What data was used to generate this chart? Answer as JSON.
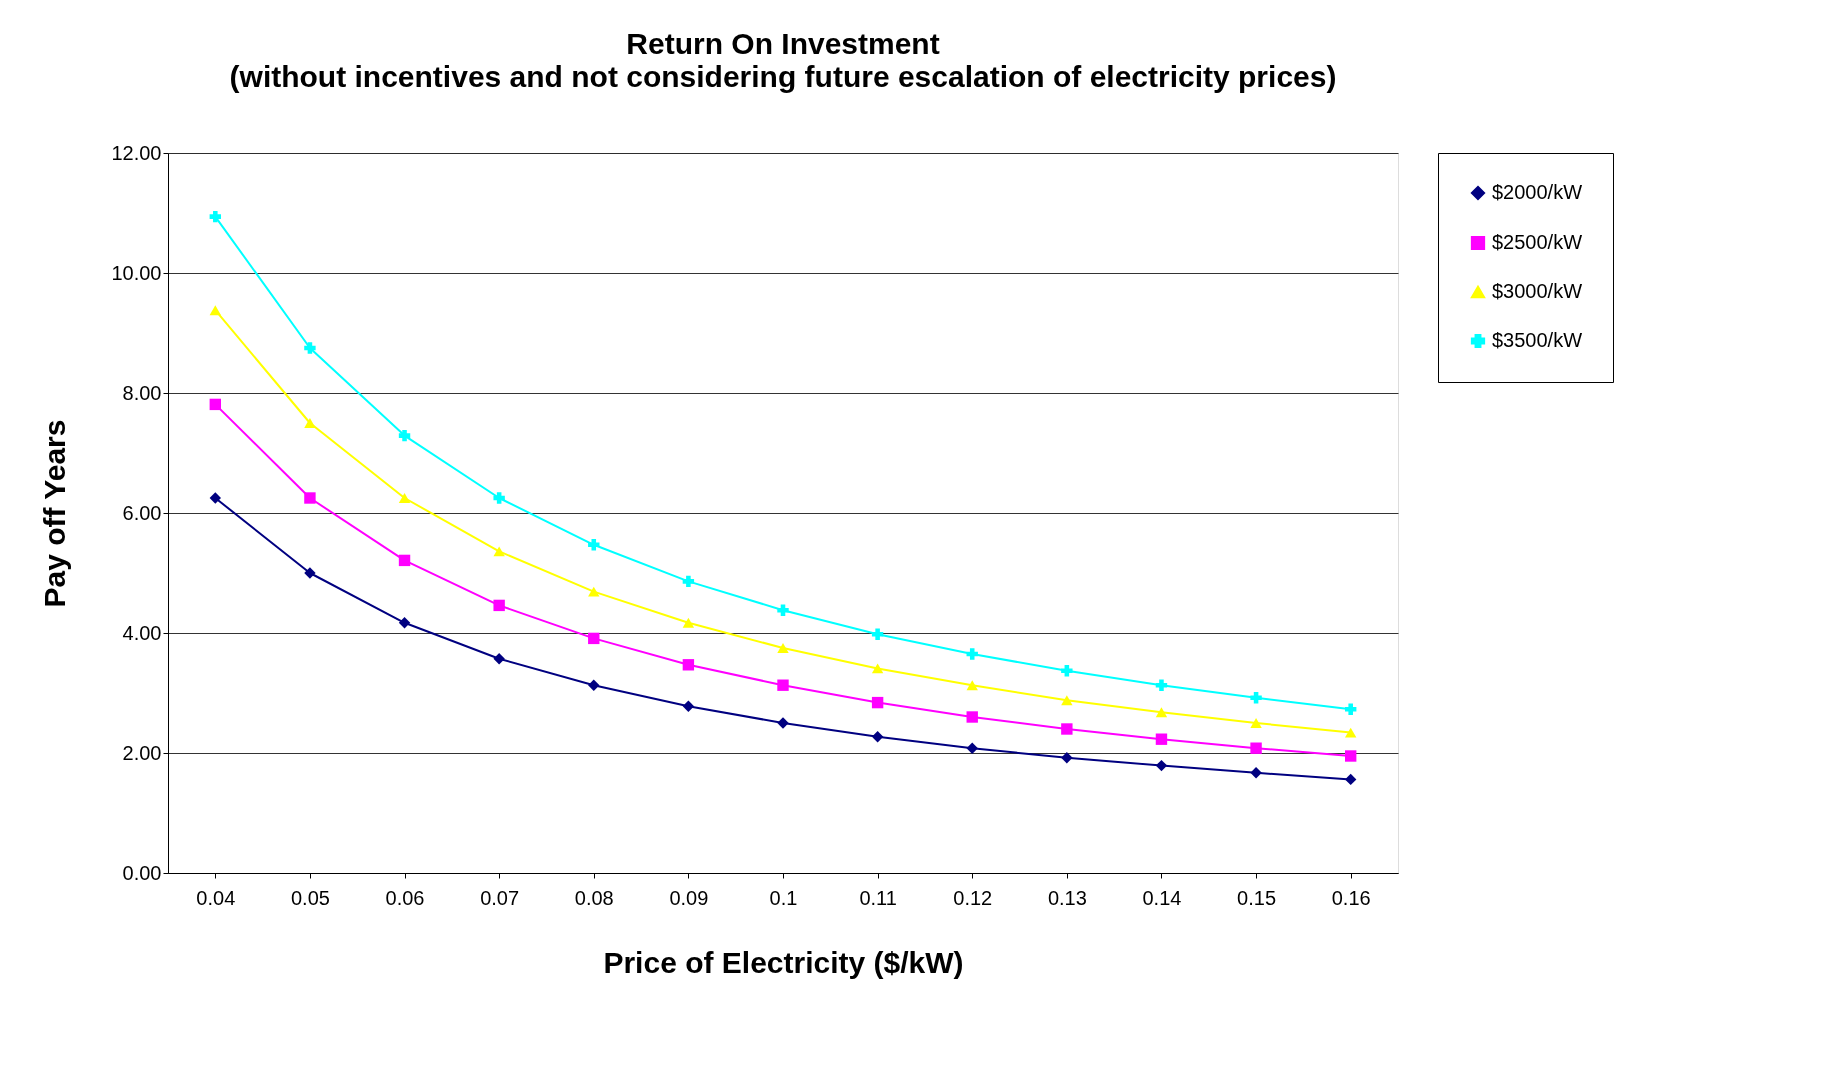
{
  "chart_data": {
    "type": "line",
    "title": "Return On Investment",
    "subtitle": "(without  incentives and not considering future escalation of electricity prices)",
    "xlabel": "Price of Electricity ($/kW)",
    "ylabel": "Pay off Years",
    "categories": [
      "0.04",
      "0.05",
      "0.06",
      "0.07",
      "0.08",
      "0.09",
      "0.1",
      "0.11",
      "0.12",
      "0.13",
      "0.14",
      "0.15",
      "0.16"
    ],
    "series": [
      {
        "name": "$2000/kW",
        "color": "#000080",
        "marker": "diamond",
        "values": [
          6.25,
          5.0,
          4.17,
          3.57,
          3.13,
          2.78,
          2.5,
          2.27,
          2.08,
          1.92,
          1.79,
          1.67,
          1.56
        ]
      },
      {
        "name": "$2500/kW",
        "color": "#ff00ff",
        "marker": "square",
        "values": [
          7.81,
          6.25,
          5.21,
          4.46,
          3.91,
          3.47,
          3.13,
          2.84,
          2.6,
          2.4,
          2.23,
          2.08,
          1.95
        ]
      },
      {
        "name": "$3000/kW",
        "color": "#ffff00",
        "marker": "triangle",
        "values": [
          9.38,
          7.5,
          6.25,
          5.36,
          4.69,
          4.17,
          3.75,
          3.41,
          3.13,
          2.88,
          2.68,
          2.5,
          2.34
        ]
      },
      {
        "name": "$3500/kW",
        "color": "#00ffff",
        "marker": "cross",
        "values": [
          10.94,
          8.75,
          7.29,
          6.25,
          5.47,
          4.86,
          4.38,
          3.98,
          3.65,
          3.37,
          3.13,
          2.92,
          2.73
        ]
      }
    ],
    "ylim": [
      0,
      12
    ],
    "yticks": [
      {
        "value": 0,
        "label": "0.00"
      },
      {
        "value": 2,
        "label": "2.00"
      },
      {
        "value": 4,
        "label": "4.00"
      },
      {
        "value": 6,
        "label": "6.00"
      },
      {
        "value": 8,
        "label": "8.00"
      },
      {
        "value": 10,
        "label": "10.00"
      },
      {
        "value": 12,
        "label": "12.00"
      }
    ],
    "grid": "y",
    "legend": "right",
    "line_style": "solid"
  }
}
